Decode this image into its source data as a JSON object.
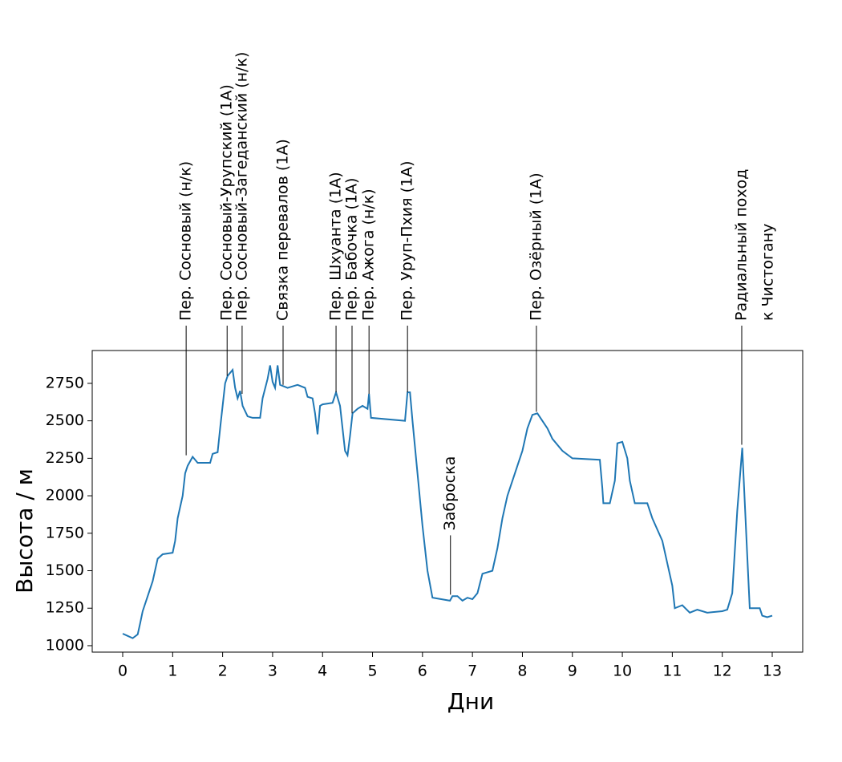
{
  "chart_data": {
    "type": "line",
    "xlabel": "Дни",
    "ylabel": "Высота / м",
    "xlim": [
      -0.61,
      13.61
    ],
    "ylim": [
      957,
      2969
    ],
    "xticks": [
      0,
      1,
      2,
      3,
      4,
      5,
      6,
      7,
      8,
      9,
      10,
      11,
      12,
      13
    ],
    "yticks": [
      1000,
      1250,
      1500,
      1750,
      2000,
      2250,
      2500,
      2750
    ],
    "series": [
      {
        "color": "#1f77b4",
        "x": [
          0.0,
          0.1,
          0.2,
          0.3,
          0.35,
          0.4,
          0.5,
          0.6,
          0.7,
          0.8,
          1.0,
          1.05,
          1.1,
          1.2,
          1.25,
          1.3,
          1.4,
          1.5,
          1.75,
          1.8,
          1.9,
          1.95,
          2.0,
          2.05,
          2.1,
          2.2,
          2.25,
          2.3,
          2.35,
          2.4,
          2.5,
          2.6,
          2.75,
          2.8,
          2.9,
          2.95,
          3.0,
          3.05,
          3.1,
          3.15,
          3.3,
          3.5,
          3.65,
          3.7,
          3.8,
          3.85,
          3.9,
          3.95,
          4.0,
          4.2,
          4.27,
          4.35,
          4.4,
          4.45,
          4.5,
          4.55,
          4.6,
          4.7,
          4.8,
          4.9,
          4.93,
          4.97,
          5.65,
          5.7,
          5.75,
          5.8,
          5.9,
          6.0,
          6.1,
          6.2,
          6.55,
          6.6,
          6.7,
          6.8,
          6.9,
          7.0,
          7.1,
          7.2,
          7.4,
          7.5,
          7.6,
          7.7,
          7.8,
          7.9,
          8.0,
          8.1,
          8.2,
          8.3,
          8.4,
          8.5,
          8.6,
          8.8,
          9.0,
          9.55,
          9.6,
          9.62,
          9.75,
          9.85,
          9.9,
          10.0,
          10.1,
          10.15,
          10.25,
          10.5,
          10.6,
          10.8,
          10.9,
          11.0,
          11.05,
          11.2,
          11.35,
          11.5,
          11.7,
          12.0,
          12.1,
          12.2,
          12.3,
          12.4,
          12.5,
          12.55,
          12.75,
          12.8,
          12.9,
          13.0
        ],
        "values": [
          1080,
          1065,
          1050,
          1075,
          1150,
          1230,
          1330,
          1430,
          1580,
          1610,
          1620,
          1700,
          1850,
          2000,
          2150,
          2200,
          2260,
          2220,
          2220,
          2280,
          2290,
          2450,
          2600,
          2750,
          2800,
          2840,
          2720,
          2650,
          2700,
          2600,
          2530,
          2520,
          2520,
          2650,
          2780,
          2870,
          2760,
          2720,
          2870,
          2740,
          2720,
          2740,
          2720,
          2660,
          2650,
          2550,
          2410,
          2600,
          2610,
          2620,
          2690,
          2600,
          2450,
          2300,
          2270,
          2400,
          2550,
          2580,
          2600,
          2580,
          2680,
          2520,
          2500,
          2690,
          2690,
          2500,
          2150,
          1800,
          1500,
          1320,
          1300,
          1330,
          1330,
          1300,
          1320,
          1310,
          1350,
          1480,
          1500,
          1650,
          1850,
          2000,
          2100,
          2200,
          2300,
          2450,
          2540,
          2550,
          2500,
          2450,
          2380,
          2300,
          2250,
          2240,
          2050,
          1950,
          1950,
          2100,
          2350,
          2360,
          2250,
          2100,
          1950,
          1950,
          1850,
          1700,
          1550,
          1400,
          1250,
          1270,
          1220,
          1240,
          1220,
          1230,
          1240,
          1350,
          1900,
          2320,
          1600,
          1250,
          1250,
          1200,
          1190,
          1200
        ]
      }
    ],
    "annotations": [
      {
        "label": [
          "Пер. Сосновый (н/к)"
        ],
        "x": 1.27,
        "y": 2270,
        "placement": "above"
      },
      {
        "label": [
          "Пер. Сосновый-Урупский (1А)"
        ],
        "x": 2.09,
        "y": 2800,
        "placement": "above"
      },
      {
        "label": [
          "Пер. Сосновый-Загеданский (н/к)"
        ],
        "x": 2.39,
        "y": 2680,
        "placement": "above"
      },
      {
        "label": [
          "Связка перевалов (1А)"
        ],
        "x": 3.21,
        "y": 2740,
        "placement": "above"
      },
      {
        "label": [
          "Пер. Шхуанта (1А)"
        ],
        "x": 4.27,
        "y": 2690,
        "placement": "above"
      },
      {
        "label": [
          "Пер. Бабочка (1А)"
        ],
        "x": 4.59,
        "y": 2550,
        "placement": "above"
      },
      {
        "label": [
          "Пер. Ажога (н/к)"
        ],
        "x": 4.93,
        "y": 2680,
        "placement": "above"
      },
      {
        "label": [
          "Пер. Уруп-Пхия (1А)"
        ],
        "x": 5.7,
        "y": 2690,
        "placement": "above"
      },
      {
        "label": [
          "Заброска"
        ],
        "x": 6.56,
        "y": 1340,
        "placement": "inside"
      },
      {
        "label": [
          "Пер. Озёрный (1А)"
        ],
        "x": 8.28,
        "y": 2560,
        "placement": "above"
      },
      {
        "label": [
          "Радиальный поход",
          "к Чистогану"
        ],
        "x": 12.39,
        "y": 2340,
        "placement": "above"
      }
    ]
  }
}
